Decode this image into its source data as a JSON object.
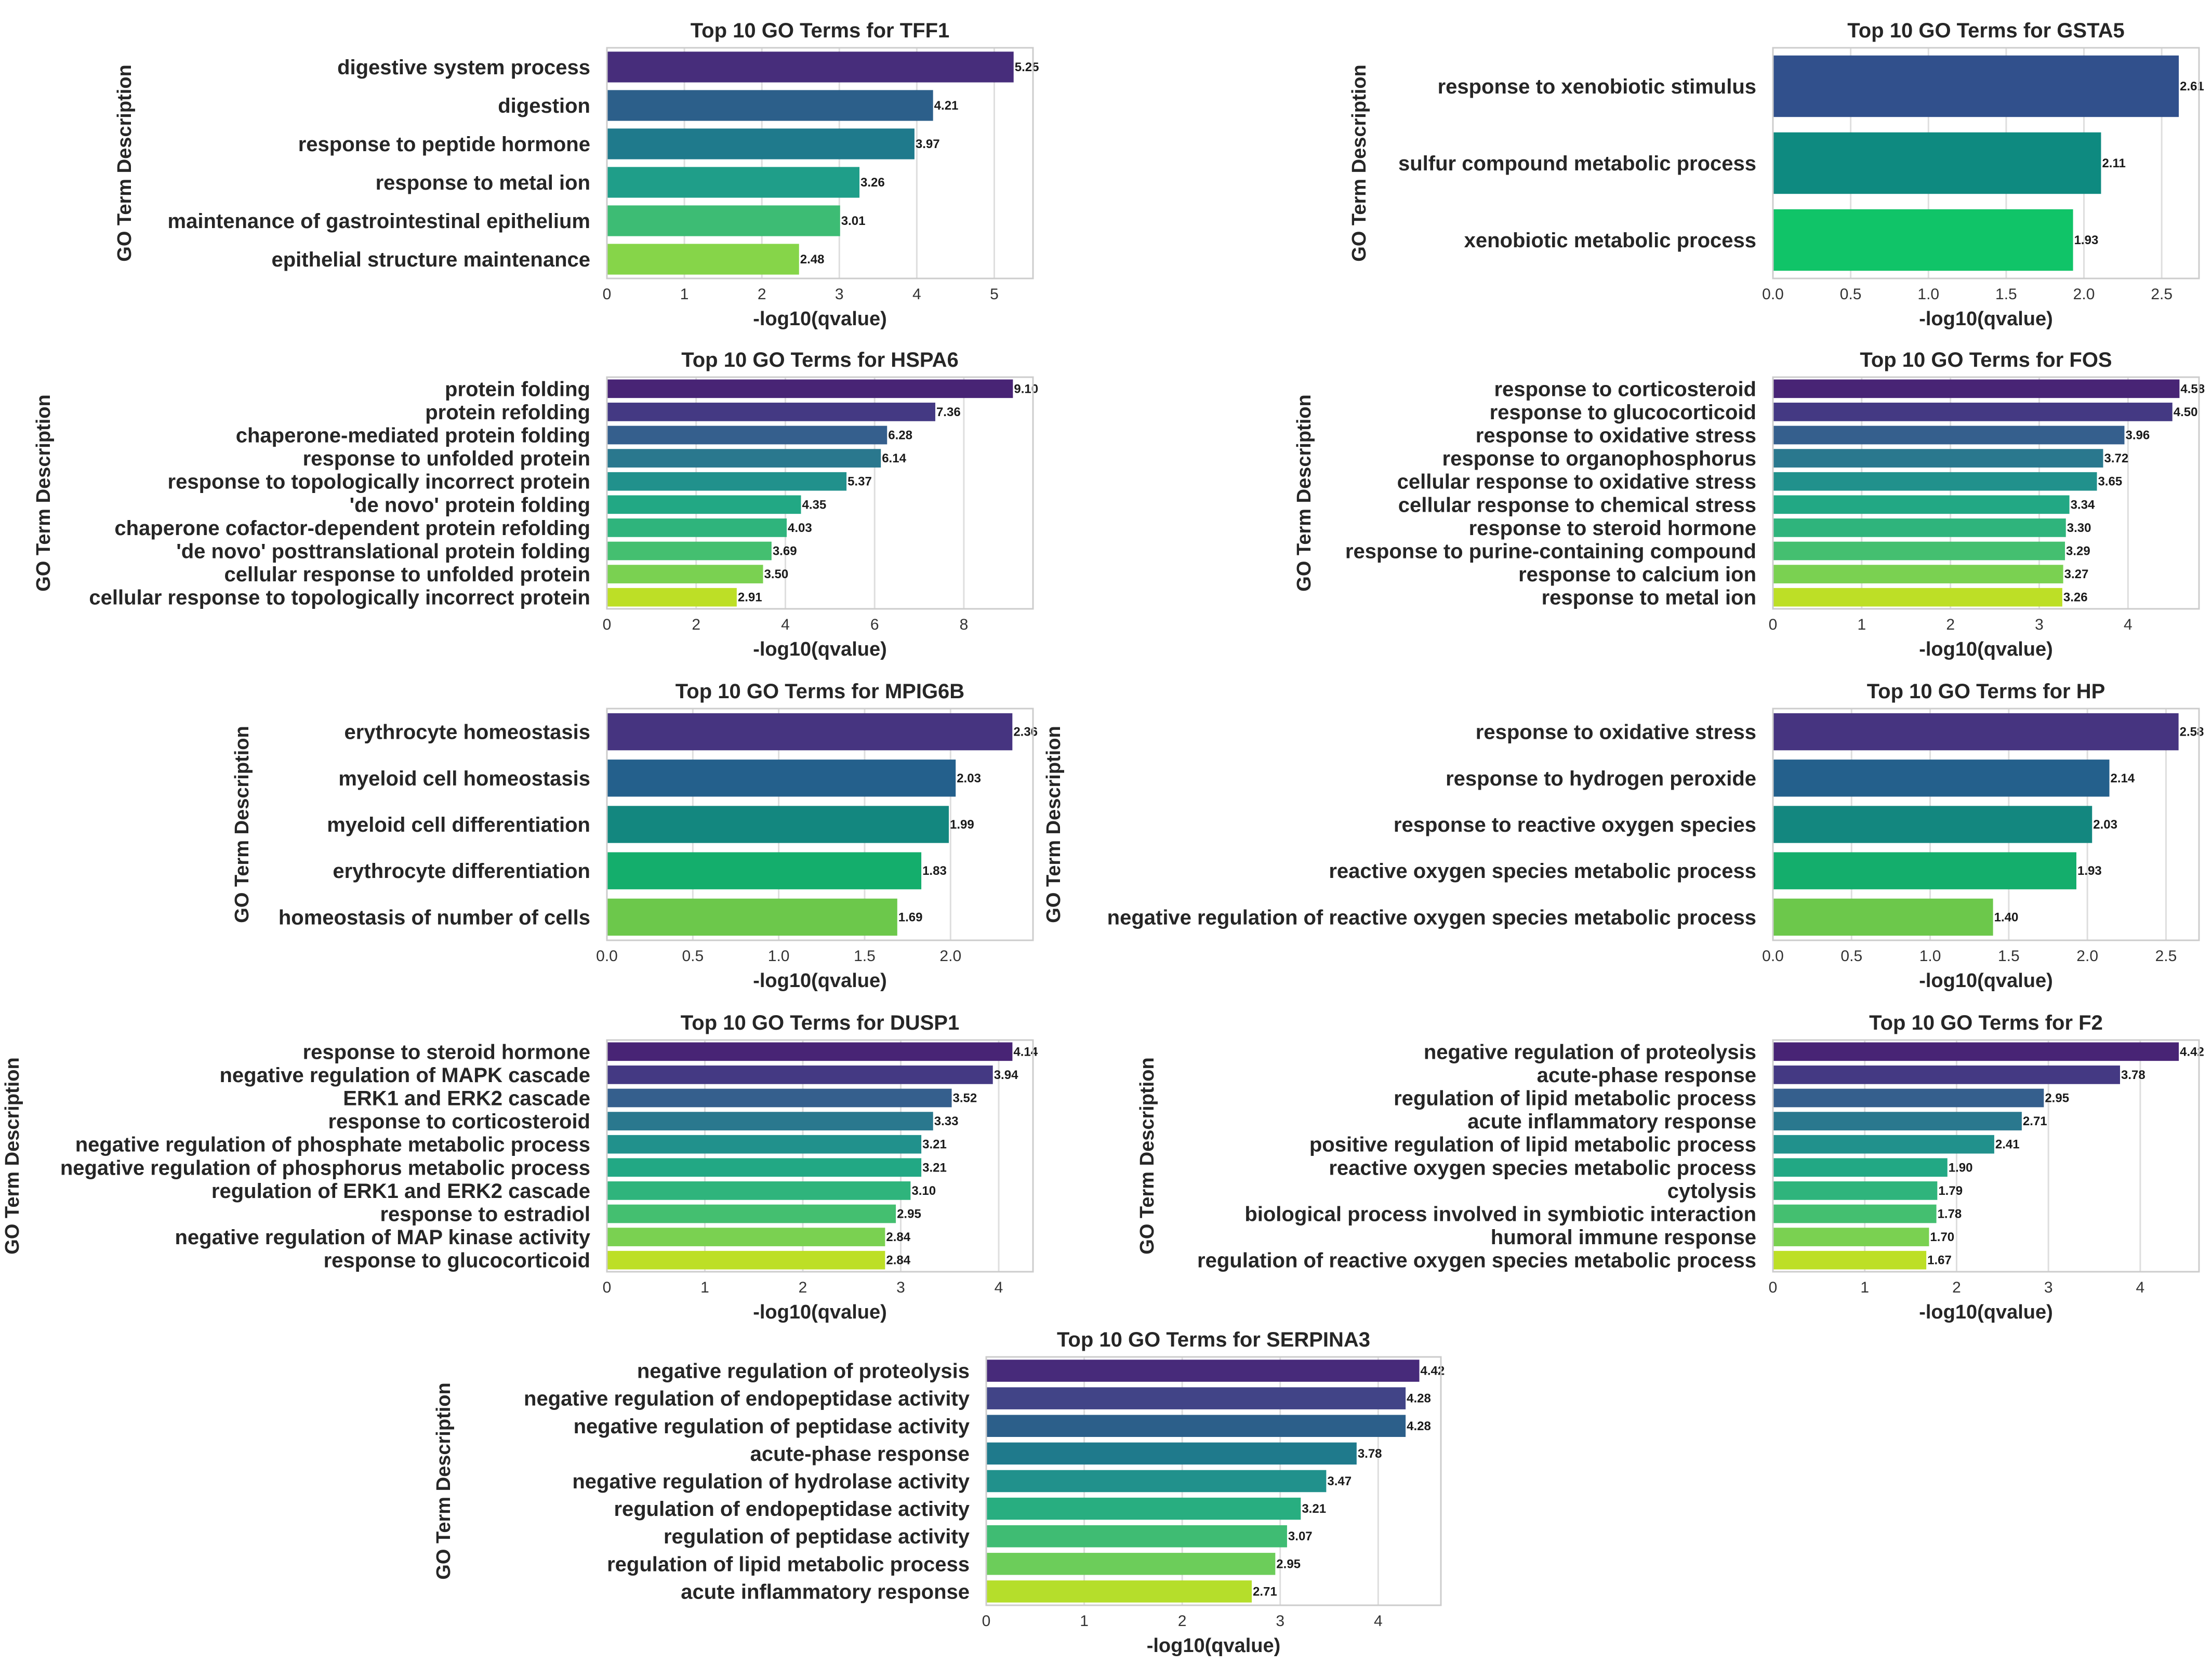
{
  "chart_data": [
    {
      "type": "bar",
      "orientation": "horizontal",
      "title": "Top 10 GO Terms for TFF1",
      "xlabel": "-log10(qvalue)",
      "ylabel": "GO Term Description",
      "categories": [
        "digestive system process",
        "digestion",
        "response to peptide hormone",
        "response to metal ion",
        "maintenance of gastrointestinal epithelium",
        "epithelial structure maintenance"
      ],
      "values": [
        5.25,
        4.21,
        3.97,
        3.26,
        3.01,
        2.48
      ],
      "labels": [
        "5.25",
        "4.21",
        "3.97",
        "3.26",
        "3.01",
        "2.48"
      ],
      "xticks": [
        "0",
        "1",
        "2",
        "3",
        "4",
        "5"
      ],
      "xlim": [
        0,
        5.5
      ],
      "grid": true,
      "colors": [
        "#472d7b",
        "#2c5f8a",
        "#1f7a8c",
        "#1f9e89",
        "#3dbc74",
        "#86d549"
      ]
    },
    {
      "type": "bar",
      "orientation": "horizontal",
      "title": "Top 10 GO Terms for GSTA5",
      "xlabel": "-log10(qvalue)",
      "ylabel": "GO Term Description",
      "categories": [
        "response to xenobiotic stimulus",
        "sulfur compound metabolic process",
        "xenobiotic metabolic process"
      ],
      "values": [
        2.61,
        2.11,
        1.93
      ],
      "labels": [
        "2.61",
        "2.11",
        "1.93"
      ],
      "xticks": [
        "0.0",
        "0.5",
        "1.0",
        "1.5",
        "2.0",
        "2.5"
      ],
      "xlim": [
        0,
        2.74
      ],
      "grid": true,
      "colors": [
        "#31508c",
        "#0e8a80",
        "#10c468"
      ]
    },
    {
      "type": "bar",
      "orientation": "horizontal",
      "title": "Top 10 GO Terms for HSPA6",
      "xlabel": "-log10(qvalue)",
      "ylabel": "GO Term Description",
      "categories": [
        "protein folding",
        "protein refolding",
        "chaperone-mediated protein folding",
        "response to unfolded protein",
        "response to topologically incorrect protein",
        "'de novo' protein folding",
        "chaperone cofactor-dependent protein refolding",
        "'de novo' posttranslational protein folding",
        "cellular response to unfolded protein",
        "cellular response to topologically incorrect protein"
      ],
      "values": [
        9.1,
        7.36,
        6.28,
        6.14,
        5.37,
        4.35,
        4.03,
        3.69,
        3.5,
        2.91
      ],
      "labels": [
        "9.10",
        "7.36",
        "6.28",
        "6.14",
        "5.37",
        "4.35",
        "4.03",
        "3.69",
        "3.50",
        "2.91"
      ],
      "xticks": [
        "0",
        "2",
        "4",
        "6",
        "8"
      ],
      "xlim": [
        0,
        9.55
      ],
      "grid": true,
      "colors": [
        "#482475",
        "#443983",
        "#355f8d",
        "#2a788e",
        "#21918c",
        "#22a884",
        "#2fb47c",
        "#44bf70",
        "#7ad151",
        "#bddf26"
      ]
    },
    {
      "type": "bar",
      "orientation": "horizontal",
      "title": "Top 10 GO Terms for FOS",
      "xlabel": "-log10(qvalue)",
      "ylabel": "GO Term Description",
      "categories": [
        "response to corticosteroid",
        "response to glucocorticoid",
        "response to oxidative stress",
        "response to organophosphorus",
        "cellular response to oxidative stress",
        "cellular response to chemical stress",
        "response to steroid hormone",
        "response to purine-containing compound",
        "response to calcium ion",
        "response to metal ion"
      ],
      "values": [
        4.58,
        4.5,
        3.96,
        3.72,
        3.65,
        3.34,
        3.3,
        3.29,
        3.27,
        3.26
      ],
      "labels": [
        "4.58",
        "4.50",
        "3.96",
        "3.72",
        "3.65",
        "3.34",
        "3.30",
        "3.29",
        "3.27",
        "3.26"
      ],
      "xticks": [
        "0",
        "1",
        "2",
        "3",
        "4"
      ],
      "xlim": [
        0,
        4.8
      ],
      "grid": true,
      "colors": [
        "#482475",
        "#443983",
        "#355f8d",
        "#2a788e",
        "#21918c",
        "#22a884",
        "#2fb47c",
        "#44bf70",
        "#7ad151",
        "#bddf26"
      ]
    },
    {
      "type": "bar",
      "orientation": "horizontal",
      "title": "Top 10 GO Terms for MPIG6B",
      "xlabel": "-log10(qvalue)",
      "ylabel": "GO Term Description",
      "categories": [
        "erythrocyte homeostasis",
        "myeloid cell homeostasis",
        "myeloid cell differentiation",
        "erythrocyte differentiation",
        "homeostasis of number of cells"
      ],
      "values": [
        2.36,
        2.03,
        1.99,
        1.83,
        1.69
      ],
      "labels": [
        "2.36",
        "2.03",
        "1.99",
        "1.83",
        "1.69"
      ],
      "xticks": [
        "0.0",
        "0.5",
        "1.0",
        "1.5",
        "2.0"
      ],
      "xlim": [
        0,
        2.48
      ],
      "grid": true,
      "colors": [
        "#463480",
        "#24608c",
        "#13877f",
        "#14ae6c",
        "#6cc84b"
      ]
    },
    {
      "type": "bar",
      "orientation": "horizontal",
      "title": "Top 10 GO Terms for HP",
      "xlabel": "-log10(qvalue)",
      "ylabel": "GO Term Description",
      "categories": [
        "response to oxidative stress",
        "response to hydrogen peroxide",
        "response to reactive oxygen species",
        "reactive oxygen species metabolic process",
        "negative regulation of reactive oxygen species metabolic process"
      ],
      "values": [
        2.58,
        2.14,
        2.03,
        1.93,
        1.4
      ],
      "labels": [
        "2.58",
        "2.14",
        "2.03",
        "1.93",
        "1.40"
      ],
      "xticks": [
        "0.0",
        "0.5",
        "1.0",
        "1.5",
        "2.0",
        "2.5"
      ],
      "xlim": [
        0,
        2.71
      ],
      "grid": true,
      "colors": [
        "#463480",
        "#24608c",
        "#13877f",
        "#14ae6c",
        "#6cc84b"
      ]
    },
    {
      "type": "bar",
      "orientation": "horizontal",
      "title": "Top 10 GO Terms for DUSP1",
      "xlabel": "-log10(qvalue)",
      "ylabel": "GO Term Description",
      "categories": [
        "response to steroid hormone",
        "negative regulation of MAPK cascade",
        "ERK1 and ERK2 cascade",
        "response to corticosteroid",
        "negative regulation of phosphate metabolic process",
        "negative regulation of phosphorus metabolic process",
        "regulation of ERK1 and ERK2 cascade",
        "response to estradiol",
        "negative regulation of MAP kinase activity",
        "response to glucocorticoid"
      ],
      "values": [
        4.14,
        3.94,
        3.52,
        3.33,
        3.21,
        3.21,
        3.1,
        2.95,
        2.84,
        2.84
      ],
      "labels": [
        "4.14",
        "3.94",
        "3.52",
        "3.33",
        "3.21",
        "3.21",
        "3.10",
        "2.95",
        "2.84",
        "2.84"
      ],
      "xticks": [
        "0",
        "1",
        "2",
        "3",
        "4"
      ],
      "xlim": [
        0,
        4.35
      ],
      "grid": true,
      "colors": [
        "#482475",
        "#443983",
        "#355f8d",
        "#2a788e",
        "#21918c",
        "#22a884",
        "#2fb47c",
        "#44bf70",
        "#7ad151",
        "#bddf26"
      ]
    },
    {
      "type": "bar",
      "orientation": "horizontal",
      "title": "Top 10 GO Terms for F2",
      "xlabel": "-log10(qvalue)",
      "ylabel": "GO Term Description",
      "categories": [
        "negative regulation of proteolysis",
        "acute-phase response",
        "regulation of lipid metabolic process",
        "acute inflammatory response",
        "positive regulation of lipid metabolic process",
        "reactive oxygen species metabolic process",
        "cytolysis",
        "biological process involved in symbiotic interaction",
        "humoral immune response",
        "regulation of reactive oxygen species metabolic process"
      ],
      "values": [
        4.42,
        3.78,
        2.95,
        2.71,
        2.41,
        1.9,
        1.79,
        1.78,
        1.7,
        1.67
      ],
      "labels": [
        "4.42",
        "3.78",
        "2.95",
        "2.71",
        "2.41",
        "1.90",
        "1.79",
        "1.78",
        "1.70",
        "1.67"
      ],
      "xticks": [
        "0",
        "1",
        "2",
        "3",
        "4"
      ],
      "xlim": [
        0,
        4.64
      ],
      "grid": true,
      "colors": [
        "#482475",
        "#443983",
        "#355f8d",
        "#2a788e",
        "#21918c",
        "#22a884",
        "#2fb47c",
        "#44bf70",
        "#7ad151",
        "#bddf26"
      ]
    },
    {
      "type": "bar",
      "orientation": "horizontal",
      "title": "Top 10 GO Terms for SERPINA3",
      "xlabel": "-log10(qvalue)",
      "ylabel": "GO Term Description",
      "categories": [
        "negative regulation of proteolysis",
        "negative regulation of endopeptidase activity",
        "negative regulation of peptidase activity",
        "acute-phase response",
        "negative regulation of hydrolase activity",
        "regulation of endopeptidase activity",
        "regulation of peptidase activity",
        "regulation of lipid metabolic process",
        "acute inflammatory response"
      ],
      "values": [
        4.42,
        4.28,
        4.28,
        3.78,
        3.47,
        3.21,
        3.07,
        2.95,
        2.71
      ],
      "labels": [
        "4.42",
        "4.28",
        "4.28",
        "3.78",
        "3.47",
        "3.21",
        "3.07",
        "2.95",
        "2.71"
      ],
      "xticks": [
        "0",
        "1",
        "2",
        "3",
        "4"
      ],
      "xlim": [
        0,
        4.64
      ],
      "grid": true,
      "colors": [
        "#472a7a",
        "#414487",
        "#2c5f8a",
        "#1f7a8c",
        "#21918c",
        "#28ae80",
        "#3fbc73",
        "#6ccd5a",
        "#b5de2b"
      ]
    }
  ]
}
